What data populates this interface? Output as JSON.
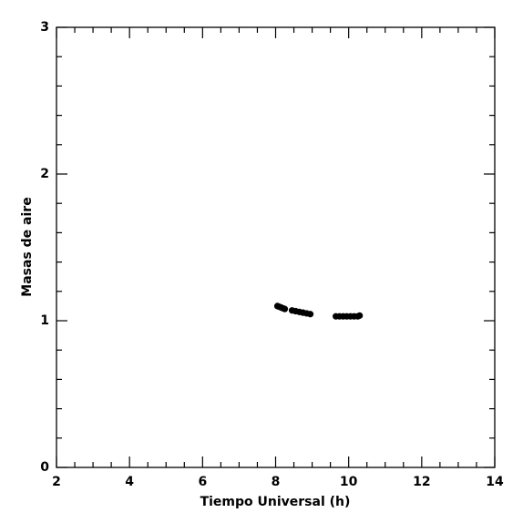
{
  "chart_data": {
    "type": "scatter",
    "x_label": "Tiempo Universal (h)",
    "y_label": "Masas de aire",
    "x": [
      8.05,
      8.1,
      8.15,
      8.2,
      8.25,
      8.45,
      8.55,
      8.65,
      8.75,
      8.85,
      8.95,
      9.65,
      9.75,
      9.85,
      9.95,
      10.05,
      10.15,
      10.25,
      10.3
    ],
    "values": [
      1.1,
      1.095,
      1.09,
      1.085,
      1.08,
      1.07,
      1.065,
      1.06,
      1.055,
      1.05,
      1.045,
      1.03,
      1.03,
      1.03,
      1.03,
      1.03,
      1.03,
      1.03,
      1.035
    ],
    "color": "#000000",
    "xlim": [
      2,
      14
    ],
    "xticks": [
      2,
      4,
      6,
      8,
      10,
      12,
      14
    ],
    "ylim": [
      0,
      3
    ],
    "yticks": [
      0,
      1,
      2,
      3
    ]
  }
}
